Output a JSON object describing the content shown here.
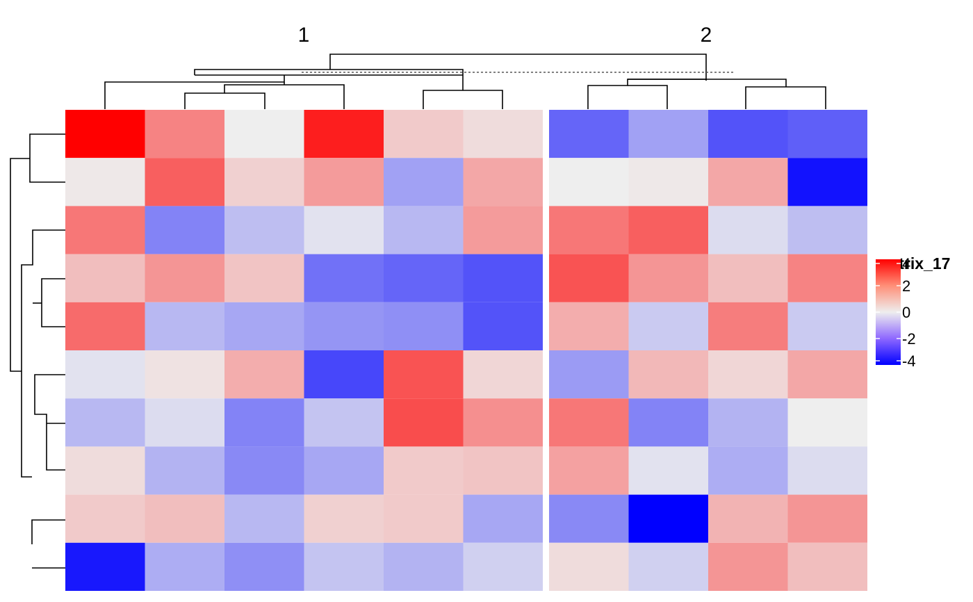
{
  "chart_data": {
    "type": "heatmap",
    "legend_title": "matrix_17",
    "legend_ticks": [
      "4",
      "2",
      "0",
      "-2",
      "-4"
    ],
    "legend_tick_values": [
      4,
      2,
      0,
      -2,
      -4
    ],
    "color_scale": {
      "low": "#0000ff",
      "mid": "#eeeeee",
      "high": "#ff0000",
      "min": -4,
      "max": 4
    },
    "column_split_labels": [
      "1",
      "2"
    ],
    "columns_per_split": [
      6,
      4
    ],
    "row_count": 10,
    "values": [
      [
        4.0,
        1.8,
        0.0,
        3.5,
        0.6,
        0.3,
        -2.3,
        -1.3,
        -2.6,
        -2.4
      ],
      [
        0.1,
        2.4,
        0.5,
        1.4,
        -1.3,
        1.2,
        0.0,
        0.1,
        1.2,
        -3.7
      ],
      [
        2.0,
        -1.8,
        -0.8,
        -0.2,
        -0.9,
        1.4,
        2.0,
        2.4,
        -0.3,
        -0.8
      ],
      [
        0.8,
        1.5,
        0.7,
        -2.1,
        -2.3,
        -2.6,
        2.6,
        1.5,
        0.8,
        1.8
      ],
      [
        2.2,
        -0.9,
        -1.2,
        -1.5,
        -1.6,
        -2.6,
        1.1,
        -0.6,
        1.9,
        -0.6
      ],
      [
        -0.2,
        0.2,
        1.1,
        -2.8,
        2.6,
        0.4,
        -1.4,
        0.9,
        0.4,
        1.2
      ],
      [
        -0.9,
        -0.3,
        -1.8,
        -0.7,
        2.7,
        1.6,
        2.0,
        -1.8,
        -1.0,
        0.0
      ],
      [
        0.3,
        -1.0,
        -1.7,
        -1.2,
        0.6,
        0.7,
        1.3,
        -0.2,
        -1.1,
        -0.3
      ],
      [
        0.6,
        0.8,
        -0.9,
        0.5,
        0.6,
        -1.2,
        -1.7,
        -4.0,
        1.0,
        1.5
      ],
      [
        -3.6,
        -1.1,
        -1.6,
        -0.7,
        -1.0,
        -0.5,
        0.3,
        -0.5,
        1.5,
        0.8
      ]
    ]
  }
}
